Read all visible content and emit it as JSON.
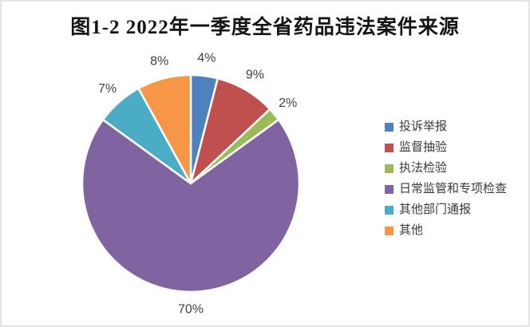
{
  "chart_data": {
    "type": "pie",
    "title": "图1-2 2022年一季度全省药品违法案件来源",
    "legend_position": "right",
    "direction": "clockwise",
    "start_angle_deg": 0,
    "slice_border_color": "#ffffff",
    "label_color": "#3f3f3f",
    "slices": [
      {
        "label": "投诉举报",
        "value": 4,
        "data_label": "4%",
        "color": "#4F81BD"
      },
      {
        "label": "监督抽验",
        "value": 9,
        "data_label": "9%",
        "color": "#C0504D"
      },
      {
        "label": "执法检验",
        "value": 2,
        "data_label": "2%",
        "color": "#9BBB59"
      },
      {
        "label": "日常监管和专项检查",
        "value": 70,
        "data_label": "70%",
        "color": "#8064A2"
      },
      {
        "label": "其他部门通报",
        "value": 7,
        "data_label": "7%",
        "color": "#4BACC6"
      },
      {
        "label": "其他",
        "value": 8,
        "data_label": "8%",
        "color": "#F79646"
      }
    ]
  }
}
